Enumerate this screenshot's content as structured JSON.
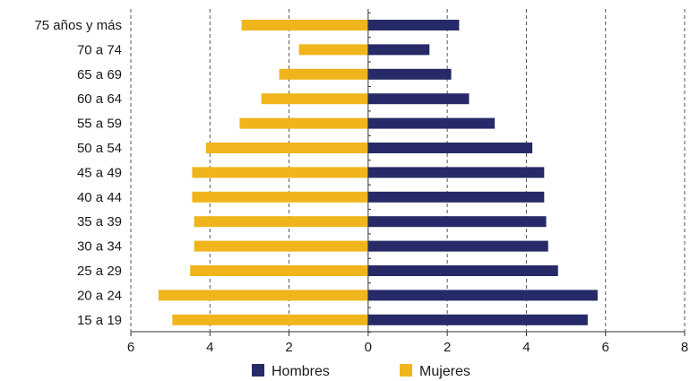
{
  "chart_data": {
    "type": "bar",
    "orientation": "horizontal",
    "layout": "population-pyramid",
    "categories": [
      "75 años y más",
      "70 a 74",
      "65 a 69",
      "60 a 64",
      "55 a 59",
      "50 a 54",
      "45 a 49",
      "40 a 44",
      "35 a 39",
      "30 a 34",
      "25 a 29",
      "20 a 24",
      "15 a 19"
    ],
    "series": [
      {
        "name": "Hombres",
        "side": "right",
        "color": "#262a68",
        "values": [
          2.3,
          1.55,
          2.1,
          2.55,
          3.2,
          4.15,
          4.45,
          4.45,
          4.5,
          4.55,
          4.8,
          5.8,
          5.55
        ]
      },
      {
        "name": "Mujeres",
        "side": "left",
        "color": "#f0b51c",
        "values": [
          3.2,
          1.75,
          2.25,
          2.7,
          3.25,
          4.1,
          4.45,
          4.45,
          4.4,
          4.4,
          4.5,
          5.3,
          4.95
        ]
      }
    ],
    "x_axis": {
      "ticks": [
        -6,
        -4,
        -2,
        0,
        2,
        4,
        6,
        8
      ],
      "tick_labels": [
        "6",
        "4",
        "2",
        "0",
        "2",
        "4",
        "6",
        "8"
      ],
      "xlim": [
        -6,
        8
      ]
    },
    "grid": "vertical-dashed",
    "legend": {
      "position": "bottom"
    },
    "title": "",
    "xlabel": "",
    "ylabel": ""
  }
}
